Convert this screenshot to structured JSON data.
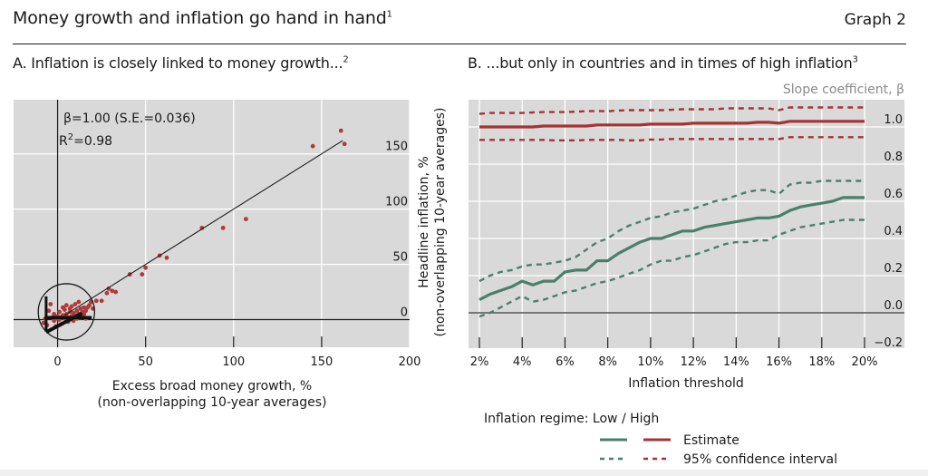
{
  "header": {
    "title": "Money growth and inflation go hand in hand",
    "title_footnote": "1",
    "graph_number": "Graph 2"
  },
  "colors": {
    "plot_background": "#d9d9d9",
    "gridline": "#ffffff",
    "high_regime": "#a83232",
    "low_regime": "#4a8069",
    "beta_hat_label": "#a89a6a",
    "scatter_point": "#b03a3a"
  },
  "chart_data": [
    {
      "id": "panel-a",
      "type": "scatter",
      "title": "A. Inflation is closely linked to money growth...",
      "title_footnote": "2",
      "xlabel": "Excess broad money growth, %",
      "xlabel_sub": "(non-overlapping 10-year averages)",
      "ylabel": "Headline inflation, %",
      "ylabel_sub": "(non-overlapping 10-year averages)",
      "xlim": [
        -25,
        200
      ],
      "ylim": [
        -25,
        199
      ],
      "xticks": [
        0,
        50,
        100,
        150,
        200
      ],
      "yticks": [
        0,
        50,
        100,
        150
      ],
      "yaxis_side": "right",
      "grid": true,
      "annotation_beta": "β=1.00 (S.E.=0.036)",
      "annotation_r2_prefix": "R",
      "annotation_r2_sup": "2",
      "annotation_r2_value": "=0.98",
      "fit_line": {
        "slope": 1.0,
        "intercept": 0,
        "x_range": [
          4,
          162
        ]
      },
      "zoom_circle": {
        "center": [
          5,
          7
        ],
        "radius_x_units": 16
      },
      "points": [
        [
          161,
          171
        ],
        [
          145,
          157
        ],
        [
          163,
          159
        ],
        [
          107,
          91
        ],
        [
          94,
          83
        ],
        [
          82,
          83
        ],
        [
          62,
          56
        ],
        [
          58,
          58
        ],
        [
          48,
          41
        ],
        [
          50,
          47
        ],
        [
          41,
          41
        ],
        [
          31,
          26
        ],
        [
          33,
          25
        ],
        [
          29,
          28
        ],
        [
          28,
          24
        ],
        [
          22,
          17
        ],
        [
          25,
          17
        ],
        [
          19,
          16
        ],
        [
          17,
          11
        ],
        [
          18,
          13
        ],
        [
          20,
          10
        ],
        [
          16,
          8
        ],
        [
          15,
          11
        ],
        [
          13,
          10
        ],
        [
          14,
          7
        ],
        [
          12,
          5
        ],
        [
          11,
          8
        ],
        [
          10,
          4
        ],
        [
          9,
          6
        ],
        [
          8,
          3
        ],
        [
          7,
          7
        ],
        [
          6,
          2
        ],
        [
          5,
          5
        ],
        [
          4,
          1
        ],
        [
          3,
          4
        ],
        [
          2,
          2
        ],
        [
          1,
          0
        ],
        [
          0,
          3
        ],
        [
          -1,
          1
        ],
        [
          -2,
          -1
        ],
        [
          -3,
          2
        ],
        [
          -4,
          14
        ],
        [
          -5,
          8
        ],
        [
          -7,
          1
        ],
        [
          -8,
          -3
        ],
        [
          -6,
          -5
        ],
        [
          3,
          11
        ],
        [
          5,
          13
        ],
        [
          8,
          12
        ],
        [
          10,
          14
        ],
        [
          12,
          16
        ],
        [
          14,
          3
        ],
        [
          9,
          -1
        ],
        [
          6,
          -2
        ],
        [
          2,
          -4
        ],
        [
          -1,
          -6
        ],
        [
          11,
          1
        ],
        [
          13,
          2
        ],
        [
          15,
          5
        ],
        [
          16,
          1
        ],
        [
          7,
          10
        ],
        [
          4,
          9
        ],
        [
          1,
          7
        ],
        [
          -2,
          5
        ]
      ]
    },
    {
      "id": "panel-b",
      "type": "line",
      "title": "B. ...but only in countries and in times of high inflation",
      "title_footnote": "3",
      "ylabel": "Slope coefficient, β",
      "xlabel": "Inflation threshold",
      "x": [
        2,
        2.5,
        3,
        3.5,
        4,
        4.5,
        5,
        5.5,
        6,
        6.5,
        7,
        7.5,
        8,
        8.5,
        9,
        9.5,
        10,
        10.5,
        11,
        11.5,
        12,
        12.5,
        13,
        13.5,
        14,
        14.5,
        15,
        15.5,
        16,
        16.5,
        17,
        17.5,
        18,
        18.5,
        19,
        19.5,
        20
      ],
      "xticks": [
        "2%",
        "4%",
        "6%",
        "8%",
        "10%",
        "12%",
        "14%",
        "16%",
        "18%",
        "20%"
      ],
      "xtick_values": [
        2,
        4,
        6,
        8,
        10,
        12,
        14,
        16,
        18,
        20
      ],
      "yticks": [
        "−0.2",
        "0.0",
        "0.2",
        "0.4",
        "0.6",
        "0.8",
        "1.0"
      ],
      "ytick_values": [
        -0.2,
        0.0,
        0.2,
        0.4,
        0.6,
        0.8,
        1.0
      ],
      "xlim": [
        1.5,
        21.5
      ],
      "ylim": [
        -0.19,
        1.18
      ],
      "yaxis_side": "right",
      "grid": true,
      "series": [
        {
          "name": "High – Estimate",
          "regime": "high",
          "style": "solid",
          "values": [
            1.0,
            1.0,
            1.0,
            1.0,
            1.0,
            1.0,
            1.005,
            1.005,
            1.005,
            1.005,
            1.005,
            1.01,
            1.01,
            1.01,
            1.01,
            1.01,
            1.015,
            1.015,
            1.015,
            1.015,
            1.02,
            1.02,
            1.02,
            1.02,
            1.02,
            1.02,
            1.025,
            1.025,
            1.02,
            1.03,
            1.03,
            1.03,
            1.03,
            1.03,
            1.03,
            1.03,
            1.03
          ]
        },
        {
          "name": "High – 95% CI upper",
          "regime": "high",
          "style": "dashed",
          "values": [
            1.07,
            1.075,
            1.075,
            1.075,
            1.075,
            1.078,
            1.08,
            1.08,
            1.08,
            1.082,
            1.085,
            1.085,
            1.085,
            1.088,
            1.09,
            1.09,
            1.09,
            1.09,
            1.092,
            1.095,
            1.095,
            1.095,
            1.095,
            1.1,
            1.1,
            1.1,
            1.1,
            1.1,
            1.09,
            1.105,
            1.105,
            1.105,
            1.105,
            1.105,
            1.105,
            1.105,
            1.105
          ]
        },
        {
          "name": "High – 95% CI lower",
          "regime": "high",
          "style": "dashed",
          "values": [
            0.93,
            0.93,
            0.93,
            0.93,
            0.93,
            0.93,
            0.93,
            0.928,
            0.928,
            0.928,
            0.93,
            0.93,
            0.93,
            0.93,
            0.928,
            0.928,
            0.932,
            0.932,
            0.935,
            0.935,
            0.935,
            0.935,
            0.935,
            0.935,
            0.935,
            0.935,
            0.935,
            0.935,
            0.935,
            0.945,
            0.945,
            0.945,
            0.945,
            0.945,
            0.945,
            0.945,
            0.945
          ]
        },
        {
          "name": "Low – Estimate",
          "regime": "low",
          "style": "solid",
          "values": [
            0.07,
            0.1,
            0.12,
            0.14,
            0.17,
            0.15,
            0.17,
            0.17,
            0.22,
            0.23,
            0.23,
            0.28,
            0.28,
            0.32,
            0.35,
            0.38,
            0.4,
            0.4,
            0.42,
            0.44,
            0.44,
            0.46,
            0.47,
            0.48,
            0.49,
            0.5,
            0.51,
            0.51,
            0.52,
            0.55,
            0.57,
            0.58,
            0.59,
            0.6,
            0.62,
            0.62,
            0.62
          ]
        },
        {
          "name": "Low – 95% CI upper",
          "regime": "low",
          "style": "dashed",
          "values": [
            0.17,
            0.2,
            0.22,
            0.23,
            0.25,
            0.26,
            0.26,
            0.27,
            0.28,
            0.3,
            0.34,
            0.38,
            0.4,
            0.44,
            0.47,
            0.49,
            0.51,
            0.52,
            0.54,
            0.55,
            0.56,
            0.58,
            0.6,
            0.61,
            0.63,
            0.65,
            0.66,
            0.66,
            0.64,
            0.69,
            0.7,
            0.7,
            0.71,
            0.71,
            0.71,
            0.71,
            0.71
          ]
        },
        {
          "name": "Low – 95% CI lower",
          "regime": "low",
          "style": "dashed",
          "values": [
            -0.02,
            0.0,
            0.03,
            0.06,
            0.09,
            0.06,
            0.07,
            0.09,
            0.11,
            0.12,
            0.14,
            0.16,
            0.17,
            0.19,
            0.21,
            0.23,
            0.26,
            0.28,
            0.28,
            0.3,
            0.31,
            0.33,
            0.35,
            0.37,
            0.38,
            0.38,
            0.39,
            0.39,
            0.42,
            0.44,
            0.46,
            0.47,
            0.48,
            0.49,
            0.5,
            0.5,
            0.5
          ]
        }
      ],
      "legend": {
        "heading": "Inflation regime: Low / High",
        "entries": [
          {
            "label": "Estimate",
            "style": "solid"
          },
          {
            "label": "95% confidence interval",
            "style": "dashed"
          }
        ],
        "placement": "bottom"
      }
    }
  ]
}
